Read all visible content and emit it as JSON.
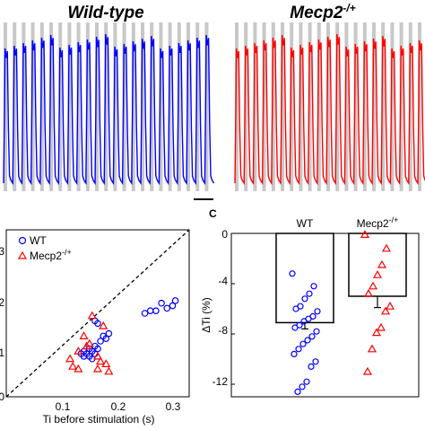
{
  "top_panels": {
    "wild_type": {
      "title": "Wild-type",
      "color": "#0000ff"
    },
    "mecp2": {
      "title_main": "Mecp2",
      "title_sup": "-/+",
      "color": "#ff0000"
    },
    "stimulus_color": "#c8c8c8"
  },
  "chart_data": [
    {
      "type": "scatter",
      "title": "",
      "xlabel": "Ti before stimulation (s)",
      "ylabel": "",
      "xlim": [
        0,
        0.33
      ],
      "ylim": [
        0,
        0.33
      ],
      "y_tick_labels": [
        ".3",
        ".2",
        ".1",
        "0"
      ],
      "x_tick_labels": [
        "0.1",
        "0.2",
        "0.3"
      ],
      "identity_line": true,
      "legend": {
        "position": "top-left",
        "entries": [
          "WT",
          "Mecp2"
        ],
        "entry2_sup": "-/+"
      },
      "series": [
        {
          "name": "WT",
          "marker": "circle",
          "color": "#0000ff",
          "points": [
            [
              0.135,
              0.085
            ],
            [
              0.14,
              0.09
            ],
            [
              0.14,
              0.08
            ],
            [
              0.145,
              0.085
            ],
            [
              0.15,
              0.095
            ],
            [
              0.15,
              0.08
            ],
            [
              0.155,
              0.09
            ],
            [
              0.155,
              0.075
            ],
            [
              0.16,
              0.085
            ],
            [
              0.16,
              0.1
            ],
            [
              0.165,
              0.095
            ],
            [
              0.17,
              0.11
            ],
            [
              0.175,
              0.12
            ],
            [
              0.18,
              0.115
            ],
            [
              0.185,
              0.125
            ],
            [
              0.16,
              0.15
            ],
            [
              0.165,
              0.145
            ],
            [
              0.25,
              0.165
            ],
            [
              0.26,
              0.17
            ],
            [
              0.27,
              0.17
            ],
            [
              0.28,
              0.185
            ],
            [
              0.29,
              0.175
            ],
            [
              0.3,
              0.18
            ],
            [
              0.305,
              0.19
            ]
          ]
        },
        {
          "name": "Mecp2-/+",
          "marker": "triangle",
          "color": "#ff0000",
          "points": [
            [
              0.115,
              0.075
            ],
            [
              0.12,
              0.06
            ],
            [
              0.13,
              0.055
            ],
            [
              0.13,
              0.09
            ],
            [
              0.14,
              0.12
            ],
            [
              0.145,
              0.1
            ],
            [
              0.15,
              0.105
            ],
            [
              0.155,
              0.16
            ],
            [
              0.165,
              0.08
            ],
            [
              0.165,
              0.055
            ],
            [
              0.17,
              0.07
            ],
            [
              0.175,
              0.14
            ],
            [
              0.18,
              0.065
            ],
            [
              0.185,
              0.05
            ]
          ]
        }
      ]
    },
    {
      "type": "bar",
      "panel_label": "C",
      "title": "",
      "xlabel": "",
      "ylabel": "ΔTi (%)",
      "ylim": [
        -13,
        0
      ],
      "y_tick_labels": [
        "0",
        "-4",
        "-8",
        "-12"
      ],
      "categories": [
        "WT",
        "Mecp2"
      ],
      "category2_sup": "-/+",
      "values": [
        -7.1,
        -5.0
      ],
      "errors": [
        0.5,
        0.9
      ],
      "bar_fill": "#ffffff",
      "series": [
        {
          "name": "WT",
          "marker": "circle",
          "color": "#0000ff",
          "points": [
            -3.2,
            -4.2,
            -4.8,
            -5.2,
            -5.8,
            -6.0,
            -6.2,
            -6.6,
            -6.8,
            -7.0,
            -7.3,
            -7.5,
            -7.8,
            -8.2,
            -8.5,
            -8.8,
            -9.2,
            -9.6,
            -10.2,
            -10.6,
            -11.8,
            -12.2,
            -12.6
          ]
        },
        {
          "name": "Mecp2-/+",
          "marker": "triangle",
          "color": "#ff0000",
          "points": [
            -0.1,
            -1.2,
            -2.5,
            -3.3,
            -4.2,
            -4.8,
            -5.8,
            -6.2,
            -7.5,
            -7.9,
            -9.2,
            -11.0
          ]
        }
      ]
    }
  ]
}
